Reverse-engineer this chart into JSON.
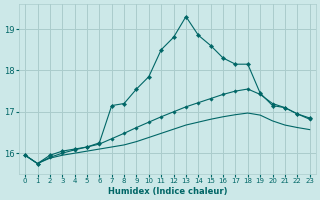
{
  "xlabel": "Humidex (Indice chaleur)",
  "bg_color": "#cce8e8",
  "grid_color": "#aacccc",
  "line_color": "#006666",
  "xlim": [
    -0.5,
    23.5
  ],
  "ylim": [
    15.5,
    19.6
  ],
  "yticks": [
    16,
    17,
    18,
    19
  ],
  "xticks": [
    0,
    1,
    2,
    3,
    4,
    5,
    6,
    7,
    8,
    9,
    10,
    11,
    12,
    13,
    14,
    15,
    16,
    17,
    18,
    19,
    20,
    21,
    22,
    23
  ],
  "line1_x": [
    0,
    1,
    2,
    3,
    4,
    5,
    6,
    7,
    8,
    9,
    10,
    11,
    12,
    13,
    14,
    15,
    16,
    17,
    18,
    19,
    20,
    21,
    22,
    23
  ],
  "line1_y": [
    15.95,
    15.75,
    15.95,
    16.05,
    16.1,
    16.15,
    16.25,
    17.15,
    17.2,
    17.55,
    17.85,
    18.5,
    18.8,
    19.3,
    18.85,
    18.6,
    18.3,
    18.15,
    18.15,
    17.45,
    17.15,
    17.1,
    16.95,
    16.85
  ],
  "line2_x": [
    0,
    1,
    2,
    3,
    4,
    5,
    6,
    7,
    8,
    9,
    10,
    11,
    12,
    13,
    14,
    15,
    16,
    17,
    18,
    19,
    20,
    21,
    22,
    23
  ],
  "line2_y": [
    15.95,
    15.75,
    15.9,
    16.0,
    16.08,
    16.15,
    16.22,
    16.35,
    16.48,
    16.62,
    16.75,
    16.88,
    17.0,
    17.12,
    17.22,
    17.32,
    17.42,
    17.5,
    17.55,
    17.42,
    17.2,
    17.1,
    16.95,
    16.82
  ],
  "line3_x": [
    0,
    1,
    2,
    3,
    4,
    5,
    6,
    7,
    8,
    9,
    10,
    11,
    12,
    13,
    14,
    15,
    16,
    17,
    18,
    19,
    20,
    21,
    22,
    23
  ],
  "line3_y": [
    15.95,
    15.75,
    15.88,
    15.95,
    16.0,
    16.05,
    16.1,
    16.15,
    16.2,
    16.28,
    16.38,
    16.48,
    16.58,
    16.68,
    16.75,
    16.82,
    16.88,
    16.93,
    16.97,
    16.92,
    16.78,
    16.68,
    16.62,
    16.57
  ]
}
